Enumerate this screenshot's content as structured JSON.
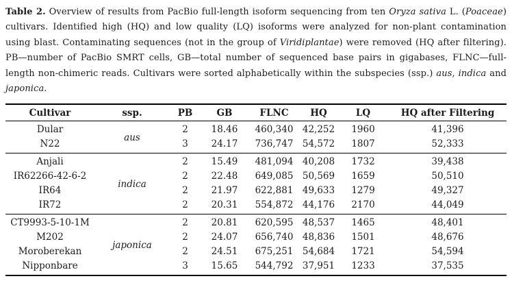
{
  "caption": {
    "segments": [
      {
        "text": "Table 2.",
        "style": "bold"
      },
      {
        "text": " Overview of results from PacBio full-length isoform sequencing from ten ",
        "style": "normal"
      },
      {
        "text": "Oryza sativa",
        "style": "italic"
      },
      {
        "text": " L. (",
        "style": "normal"
      },
      {
        "text": "Poaceae",
        "style": "italic"
      },
      {
        "text": ") cultivars. Identified high (HQ) and low quality (LQ) isoforms were analyzed for non-plant contamination using blast. Contaminating sequences (not in the group of ",
        "style": "normal"
      },
      {
        "text": "Viridiplantae",
        "style": "italic"
      },
      {
        "text": ") were removed (HQ after filtering). PB—number of PacBio SMRT cells, GB—total number of sequenced base pairs in gigabases, FLNC—full-length non-chimeric reads. Cultivars were sorted alphabetically within the subspecies (ssp.) ",
        "style": "normal"
      },
      {
        "text": "aus",
        "style": "italic"
      },
      {
        "text": ", ",
        "style": "normal"
      },
      {
        "text": "indica",
        "style": "italic"
      },
      {
        "text": " and ",
        "style": "normal"
      },
      {
        "text": "japonica",
        "style": "italic"
      },
      {
        "text": ".",
        "style": "normal"
      }
    ]
  },
  "table": {
    "columns": {
      "cultivar": "Cultivar",
      "ssp": "ssp.",
      "pb": "PB",
      "gb": "GB",
      "flnc": "FLNC",
      "hq": "HQ",
      "lq": "LQ",
      "hq_after": "HQ after Filtering"
    },
    "groups": [
      {
        "ssp": "aus",
        "rows": [
          {
            "cultivar": "Dular",
            "pb": "2",
            "gb": "18.46",
            "flnc": "460,340",
            "hq": "42,252",
            "lq": "1960",
            "hq_after": "41,396"
          },
          {
            "cultivar": "N22",
            "pb": "3",
            "gb": "24.17",
            "flnc": "736,747",
            "hq": "54,572",
            "lq": "1807",
            "hq_after": "52,333"
          }
        ]
      },
      {
        "ssp": "indica",
        "rows": [
          {
            "cultivar": "Anjali",
            "pb": "2",
            "gb": "15.49",
            "flnc": "481,094",
            "hq": "40,208",
            "lq": "1732",
            "hq_after": "39,438"
          },
          {
            "cultivar": "IR62266-42-6-2",
            "pb": "2",
            "gb": "22.48",
            "flnc": "649,085",
            "hq": "50,569",
            "lq": "1659",
            "hq_after": "50,510"
          },
          {
            "cultivar": "IR64",
            "pb": "2",
            "gb": "21.97",
            "flnc": "622,881",
            "hq": "49,633",
            "lq": "1279",
            "hq_after": "49,327"
          },
          {
            "cultivar": "IR72",
            "pb": "2",
            "gb": "20.31",
            "flnc": "554,872",
            "hq": "44,176",
            "lq": "2170",
            "hq_after": "44,049"
          }
        ]
      },
      {
        "ssp": "japonica",
        "rows": [
          {
            "cultivar": "CT9993-5-10-1M",
            "pb": "2",
            "gb": "20.81",
            "flnc": "620,595",
            "hq": "48,537",
            "lq": "1465",
            "hq_after": "48,401"
          },
          {
            "cultivar": "M202",
            "pb": "2",
            "gb": "24.07",
            "flnc": "656,740",
            "hq": "48,836",
            "lq": "1501",
            "hq_after": "48,676"
          },
          {
            "cultivar": "Moroberekan",
            "pb": "2",
            "gb": "24.51",
            "flnc": "675,251",
            "hq": "54,684",
            "lq": "1721",
            "hq_after": "54,594"
          },
          {
            "cultivar": "Nipponbare",
            "pb": "3",
            "gb": "15.65",
            "flnc": "544,792",
            "hq": "37,951",
            "lq": "1233",
            "hq_after": "37,535"
          }
        ]
      }
    ]
  },
  "colors": {
    "text": "#1b1b1b",
    "rule": "#000000",
    "background": "#ffffff"
  }
}
